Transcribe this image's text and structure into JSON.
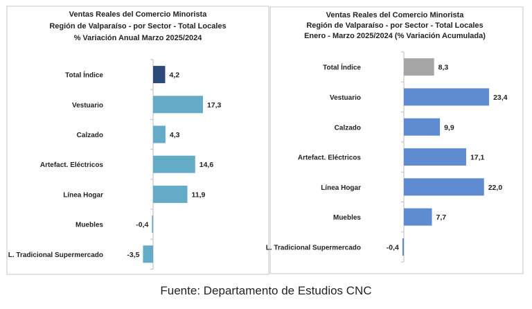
{
  "chart_data": [
    {
      "type": "bar",
      "orientation": "horizontal",
      "title": [
        "Ventas Reales del Comercio Minorista",
        "Región de Valparaíso - por Sector - Total Locales",
        "% Variación Anual Marzo 2025/2024"
      ],
      "categories": [
        "Total Índice",
        "Vestuario",
        "Calzado",
        "Artefact. Eléctricos",
        "Línea Hogar",
        "Muebles",
        "L. Tradicional Supermercado"
      ],
      "values": [
        4.2,
        17.3,
        4.3,
        14.6,
        11.9,
        -0.4,
        -3.5
      ],
      "labels": [
        "4,2",
        "17,3",
        "4,3",
        "14,6",
        "11,9",
        "-0,4",
        "-3,5"
      ],
      "colors": [
        "#2e4a7b",
        "#63abc6",
        "#63abc6",
        "#63abc6",
        "#63abc6",
        "#63abc6",
        "#63abc6"
      ],
      "xlabel": "",
      "ylabel": "",
      "grid": false
    },
    {
      "type": "bar",
      "orientation": "horizontal",
      "title": [
        "Ventas Reales del Comercio Minorista",
        "Región de Valparaíso - por Sector  - Total Locales",
        "Enero - Marzo 2025/2024 (% Variación Acumulada)"
      ],
      "categories": [
        "Total Índice",
        "Vestuario",
        "Calzado",
        "Artefact. Eléctricos",
        "Línea Hogar",
        "Muebles",
        "L. Tradicional Supermercado"
      ],
      "values": [
        8.3,
        23.4,
        9.9,
        17.1,
        22.0,
        7.7,
        -0.4
      ],
      "labels": [
        "8,3",
        "23,4",
        "9,9",
        "17,1",
        "22,0",
        "7,7",
        "-0,4"
      ],
      "colors": [
        "#a5a5a5",
        "#5f8bd0",
        "#5f8bd0",
        "#5f8bd0",
        "#5f8bd0",
        "#5f8bd0",
        "#5f8bd0"
      ],
      "xlabel": "",
      "ylabel": "",
      "grid": false
    }
  ],
  "source": "Fuente: Departamento de Estudios CNC"
}
